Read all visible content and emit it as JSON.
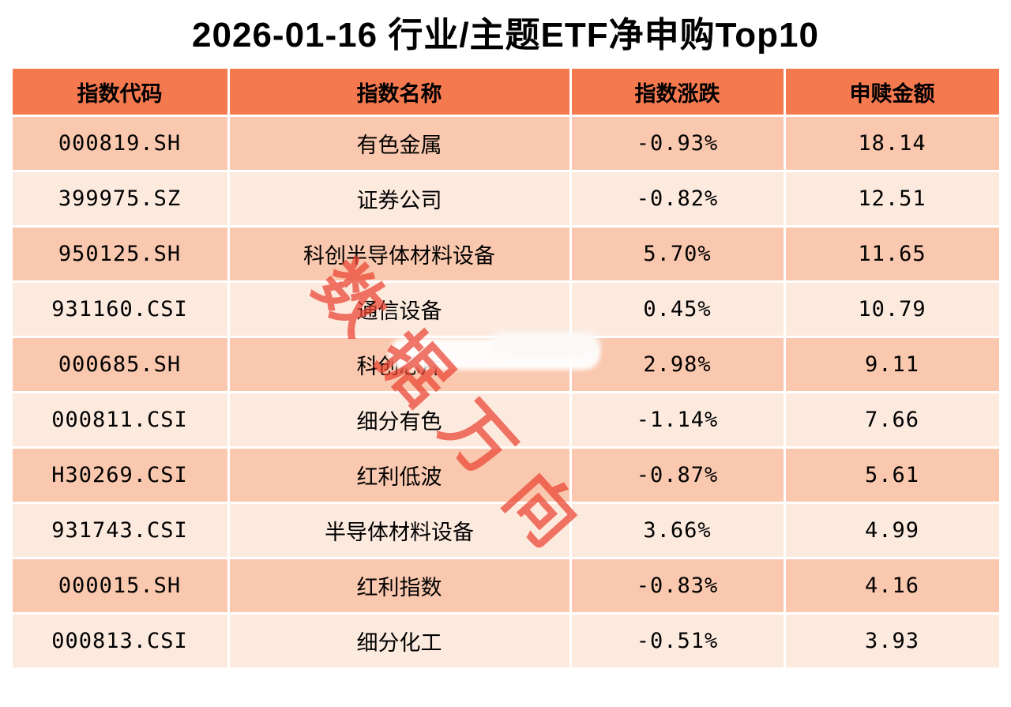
{
  "title": "2026-01-16 行业/主题ETF净申购Top10",
  "watermark_text": "数据万向",
  "colors": {
    "header_bg": "#f5794f",
    "row_dark": "#f9c8ae",
    "row_light": "#fdeadf",
    "watermark_red": "#e94230",
    "text": "#000000"
  },
  "chart_data": {
    "type": "table",
    "title": "2026-01-16 行业/主题ETF净申购Top10",
    "columns": [
      "指数代码",
      "指数名称",
      "指数涨跌",
      "申赎金额"
    ],
    "rows": [
      {
        "code": "000819.SH",
        "name": "有色金属",
        "change": "-0.93%",
        "amount": "18.14"
      },
      {
        "code": "399975.SZ",
        "name": "证券公司",
        "change": "-0.82%",
        "amount": "12.51"
      },
      {
        "code": "950125.SH",
        "name": "科创半导体材料设备",
        "change": "5.70%",
        "amount": "11.65"
      },
      {
        "code": "931160.CSI",
        "name": "通信设备",
        "change": "0.45%",
        "amount": "10.79"
      },
      {
        "code": "000685.SH",
        "name": "科创芯片",
        "change": "2.98%",
        "amount": "9.11"
      },
      {
        "code": "000811.CSI",
        "name": "细分有色",
        "change": "-1.14%",
        "amount": "7.66"
      },
      {
        "code": "H30269.CSI",
        "name": "红利低波",
        "change": "-0.87%",
        "amount": "5.61"
      },
      {
        "code": "931743.CSI",
        "name": "半导体材料设备",
        "change": "3.66%",
        "amount": "4.99"
      },
      {
        "code": "000015.SH",
        "name": "红利指数",
        "change": "-0.83%",
        "amount": "4.16"
      },
      {
        "code": "000813.CSI",
        "name": "细分化工",
        "change": "-0.51%",
        "amount": "3.93"
      }
    ]
  }
}
